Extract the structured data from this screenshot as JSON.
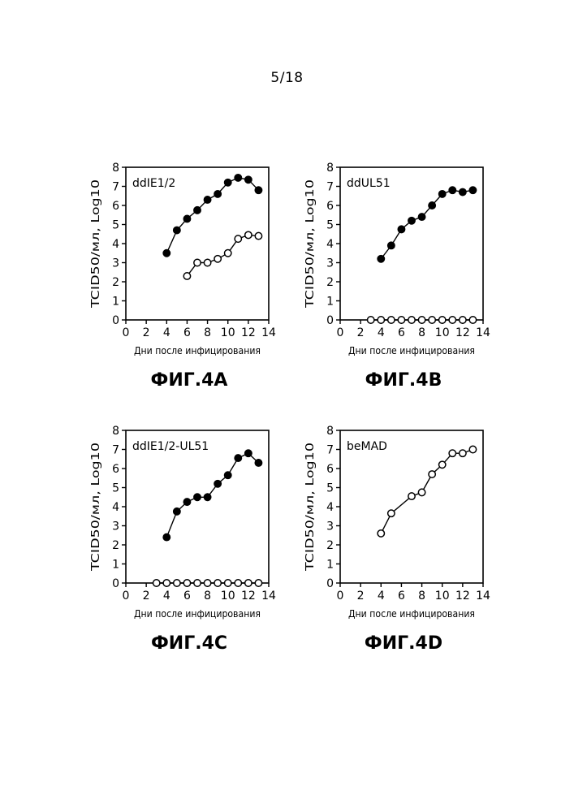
{
  "page": {
    "number": "5/18"
  },
  "chart_data": [
    {
      "type": "line",
      "caption": "ФИГ.4А",
      "annotation": "ddIE1/2",
      "xlabel": "Дни после инфицирования",
      "ylabel": "TCID50/мл, Log10",
      "xlim": [
        0,
        14
      ],
      "ylim": [
        0,
        8
      ],
      "xticks": [
        0,
        2,
        4,
        6,
        8,
        10,
        12,
        14
      ],
      "yticks": [
        0,
        1,
        2,
        3,
        4,
        5,
        6,
        7,
        8
      ],
      "grid": false,
      "series": [
        {
          "marker": "filled",
          "x": [
            4,
            5,
            6,
            7,
            8,
            9,
            10,
            11,
            12,
            13
          ],
          "y": [
            3.5,
            4.7,
            5.3,
            5.75,
            6.3,
            6.6,
            7.2,
            7.45,
            7.35,
            6.8
          ]
        },
        {
          "marker": "open",
          "x": [
            6,
            7,
            8,
            9,
            10,
            11,
            12,
            13
          ],
          "y": [
            2.3,
            3.0,
            3.0,
            3.2,
            3.5,
            4.25,
            4.45,
            4.4
          ]
        }
      ]
    },
    {
      "type": "line",
      "caption": "ФИГ.4В",
      "annotation": "ddUL51",
      "xlabel": "Дни после инфицирования",
      "ylabel": "TCID50/мл, Log10",
      "xlim": [
        0,
        14
      ],
      "ylim": [
        0,
        8
      ],
      "xticks": [
        0,
        2,
        4,
        6,
        8,
        10,
        12,
        14
      ],
      "yticks": [
        0,
        1,
        2,
        3,
        4,
        5,
        6,
        7,
        8
      ],
      "grid": false,
      "series": [
        {
          "marker": "filled",
          "x": [
            4,
            5,
            6,
            7,
            8,
            9,
            10,
            11,
            12,
            13
          ],
          "y": [
            3.2,
            3.9,
            4.75,
            5.2,
            5.4,
            6.0,
            6.6,
            6.8,
            6.7,
            6.8
          ]
        },
        {
          "marker": "open",
          "x": [
            3,
            4,
            5,
            6,
            7,
            8,
            9,
            10,
            11,
            12,
            13
          ],
          "y": [
            0,
            0,
            0,
            0,
            0,
            0,
            0,
            0,
            0,
            0,
            0
          ]
        }
      ]
    },
    {
      "type": "line",
      "caption": "ФИГ.4С",
      "annotation": "ddIE1/2-UL51",
      "xlabel": "Дни после инфицирования",
      "ylabel": "TCID50/мл, Log10",
      "xlim": [
        0,
        14
      ],
      "ylim": [
        0,
        8
      ],
      "xticks": [
        0,
        2,
        4,
        6,
        8,
        10,
        12,
        14
      ],
      "yticks": [
        0,
        1,
        2,
        3,
        4,
        5,
        6,
        7,
        8
      ],
      "grid": false,
      "series": [
        {
          "marker": "filled",
          "x": [
            4,
            5,
            6,
            7,
            8,
            9,
            10,
            11,
            12,
            13
          ],
          "y": [
            2.4,
            3.75,
            4.25,
            4.5,
            4.5,
            5.2,
            5.65,
            6.55,
            6.8,
            6.3
          ]
        },
        {
          "marker": "open",
          "x": [
            3,
            4,
            5,
            6,
            7,
            8,
            9,
            10,
            11,
            12,
            13
          ],
          "y": [
            0,
            0,
            0,
            0,
            0,
            0,
            0,
            0,
            0,
            0,
            0
          ]
        }
      ]
    },
    {
      "type": "line",
      "caption": "ФИГ.4D",
      "annotation": "beMAD",
      "xlabel": "Дни после инфицирования",
      "ylabel": "TCID50/мл, Log10",
      "xlim": [
        0,
        14
      ],
      "ylim": [
        0,
        8
      ],
      "xticks": [
        0,
        2,
        4,
        6,
        8,
        10,
        12,
        14
      ],
      "yticks": [
        0,
        1,
        2,
        3,
        4,
        5,
        6,
        7,
        8
      ],
      "grid": false,
      "series": [
        {
          "marker": "open",
          "x": [
            4,
            5,
            7,
            8,
            9,
            10,
            11,
            12,
            13
          ],
          "y": [
            2.6,
            3.65,
            4.55,
            4.75,
            5.7,
            6.2,
            6.8,
            6.8,
            7.0
          ]
        }
      ]
    }
  ]
}
